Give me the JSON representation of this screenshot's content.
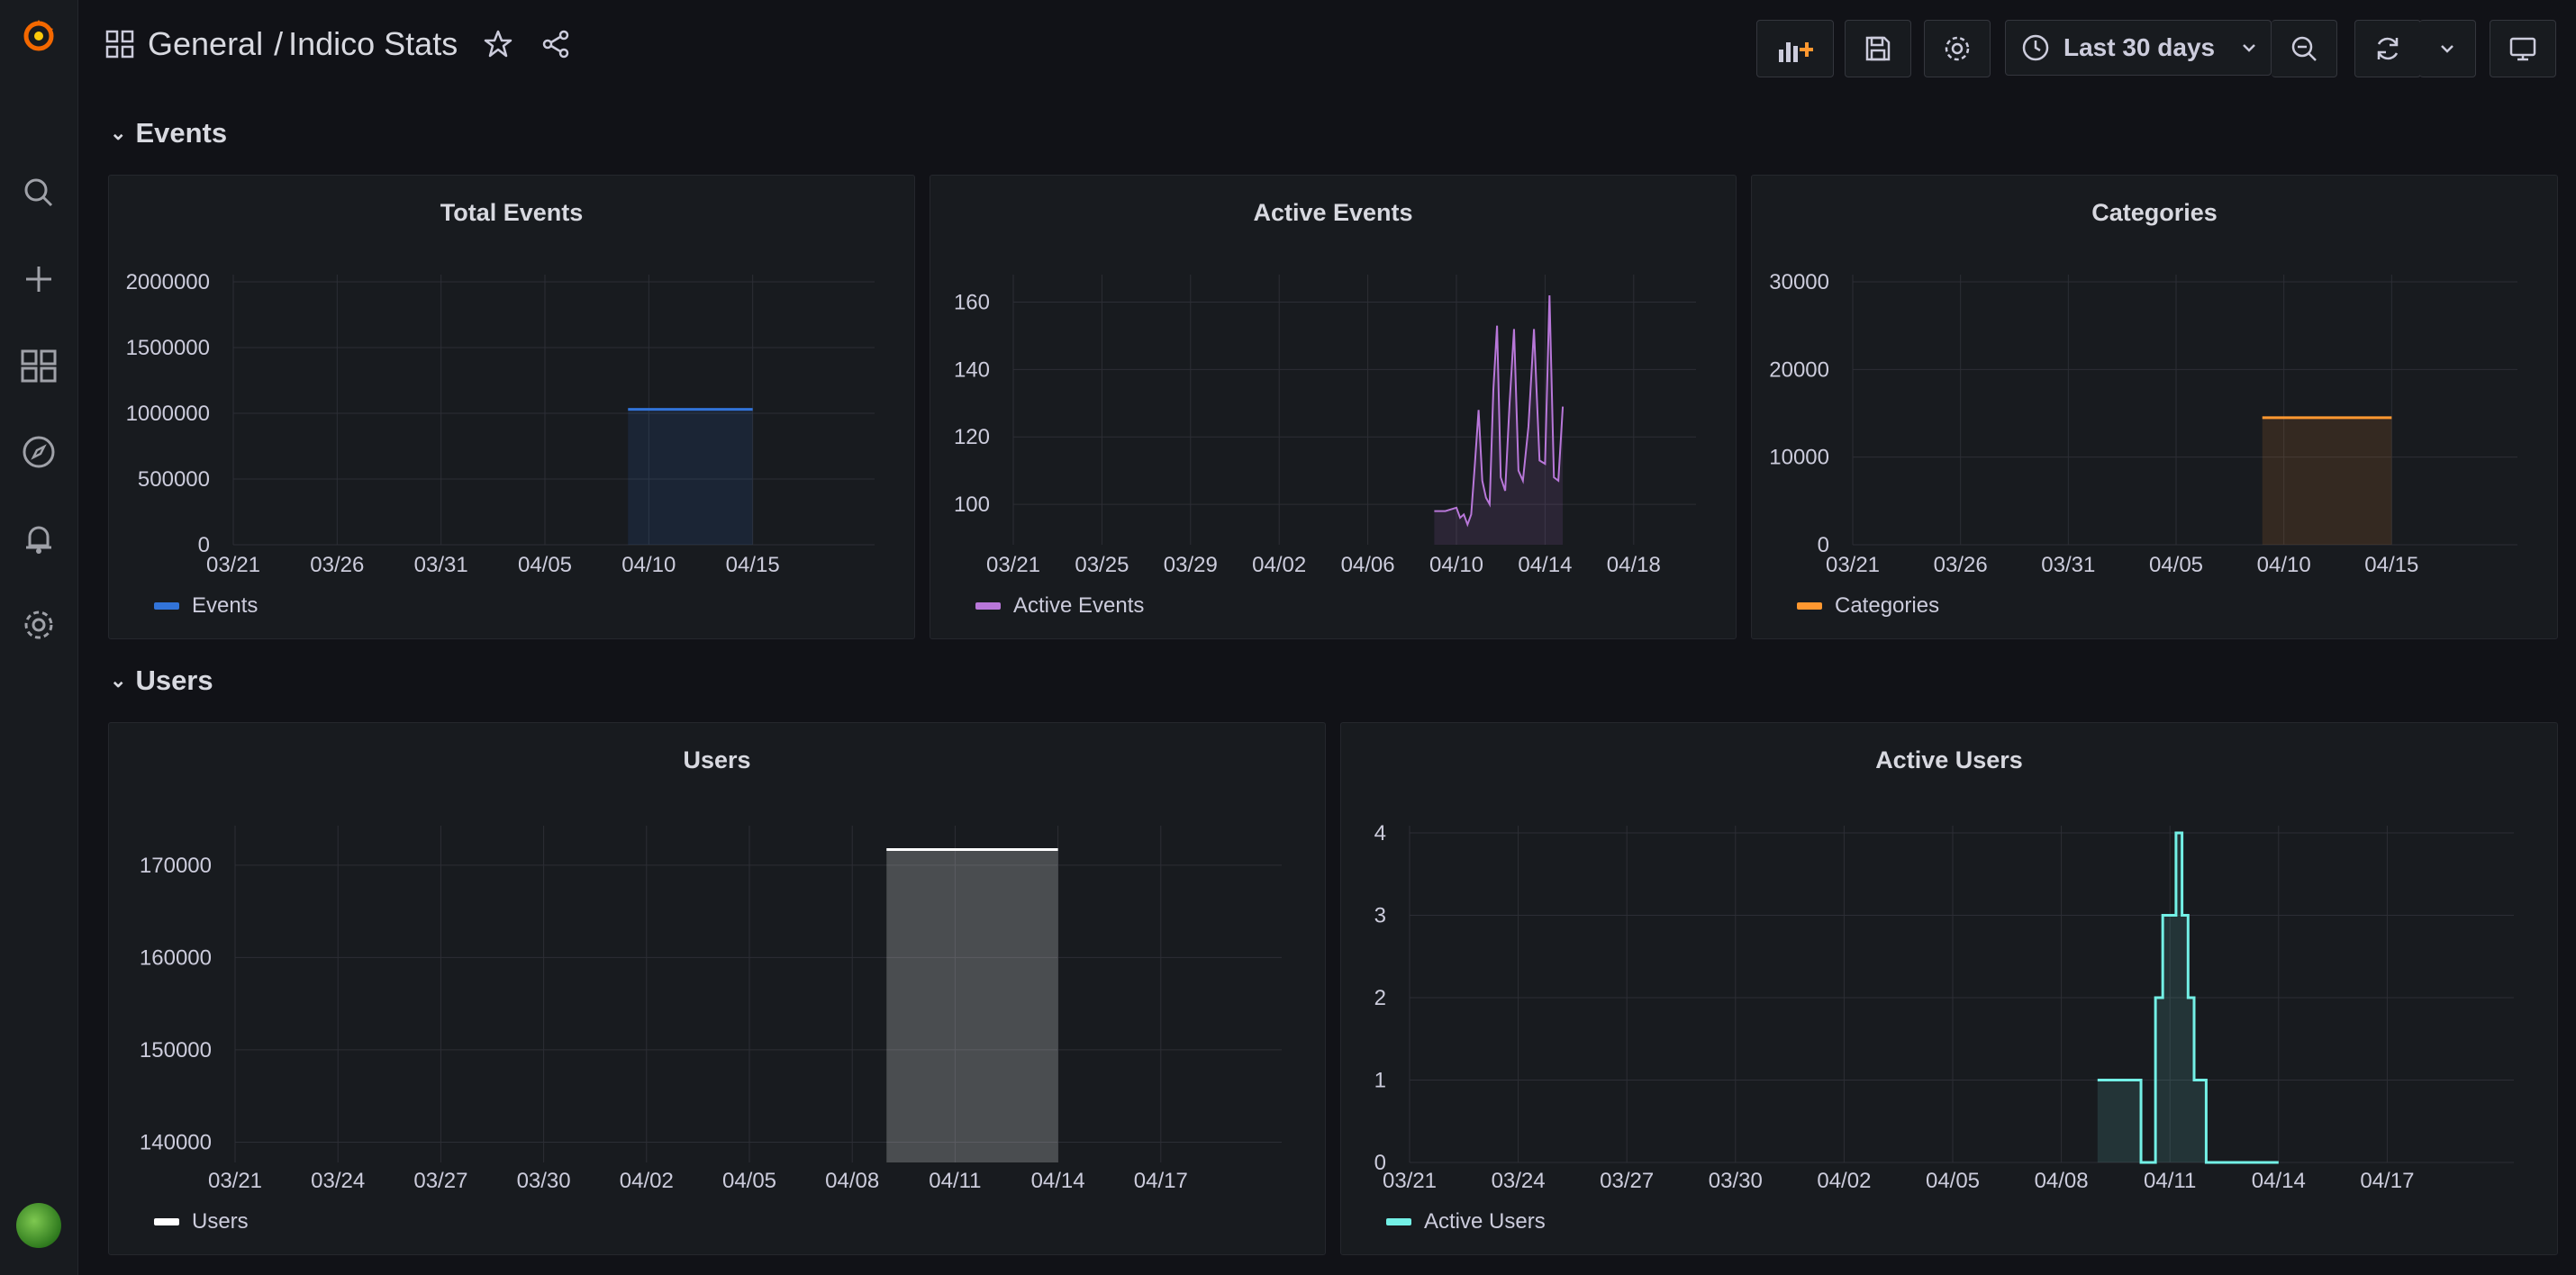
{
  "header": {
    "folder": "General",
    "separator": "/",
    "dashboard_title": "Indico Stats",
    "time_range": "Last 30 days"
  },
  "rows": [
    {
      "title": "Events"
    },
    {
      "title": "Users"
    }
  ],
  "colors": {
    "background": "#111217",
    "panel": "#181b1f",
    "events": "#3274d9",
    "active_events": "#b877d9",
    "categories": "#ff9830",
    "users": "#ffffff",
    "active_users": "#73f0e6"
  },
  "icons": [
    "grafana-logo-icon",
    "search-icon",
    "plus-icon",
    "dashboards-icon",
    "compass-icon",
    "bell-icon",
    "gear-icon",
    "add-panel-icon",
    "save-icon",
    "settings-icon",
    "clock-icon",
    "zoom-out-icon",
    "refresh-icon",
    "tv-icon"
  ],
  "chart_data": [
    {
      "id": "total-events",
      "type": "area",
      "title": "Total Events",
      "x_ticks": [
        "03/21",
        "03/26",
        "03/31",
        "04/05",
        "04/10",
        "04/15"
      ],
      "y_ticks": [
        "2000000",
        "1500000",
        "1000000",
        "500000",
        "0"
      ],
      "ylim": [
        0,
        2000000
      ],
      "series": [
        {
          "name": "Events",
          "x": [
            "04/09",
            "04/15"
          ],
          "values": [
            1030000,
            1030000
          ]
        }
      ],
      "legend": "bottom-left",
      "grid": true
    },
    {
      "id": "active-events",
      "type": "line",
      "title": "Active Events",
      "x_ticks": [
        "03/21",
        "03/25",
        "03/29",
        "04/02",
        "04/06",
        "04/10",
        "04/14",
        "04/18"
      ],
      "y_ticks": [
        "160",
        "140",
        "120",
        "100"
      ],
      "ylim": [
        88,
        166
      ],
      "series": [
        {
          "name": "Active Events",
          "x": [
            "04/09",
            "04/09",
            "04/10",
            "04/10",
            "04/10",
            "04/10",
            "04/10",
            "04/10",
            "04/11",
            "04/11",
            "04/11",
            "04/11",
            "04/11",
            "04/11",
            "04/12",
            "04/12",
            "04/12",
            "04/12",
            "04/12",
            "04/13",
            "04/13",
            "04/13",
            "04/13",
            "04/14",
            "04/14",
            "04/14",
            "04/14",
            "04/14"
          ],
          "values": [
            98,
            98,
            99,
            96,
            97,
            94,
            97,
            112,
            128,
            107,
            102,
            100,
            134,
            153,
            108,
            104,
            130,
            152,
            110,
            107,
            123,
            152,
            113,
            112,
            162,
            108,
            107,
            129
          ]
        }
      ],
      "legend": "bottom-left",
      "grid": true
    },
    {
      "id": "categories",
      "type": "area",
      "title": "Categories",
      "x_ticks": [
        "03/21",
        "03/26",
        "03/31",
        "04/05",
        "04/10",
        "04/15"
      ],
      "y_ticks": [
        "30000",
        "20000",
        "10000",
        "0"
      ],
      "ylim": [
        0,
        30000
      ],
      "series": [
        {
          "name": "Categories",
          "x": [
            "04/09",
            "04/15"
          ],
          "values": [
            14500,
            14500
          ]
        }
      ],
      "legend": "bottom-left",
      "grid": true
    },
    {
      "id": "users",
      "type": "area",
      "title": "Users",
      "x_ticks": [
        "03/21",
        "03/24",
        "03/27",
        "03/30",
        "04/02",
        "04/05",
        "04/08",
        "04/11",
        "04/14",
        "04/17"
      ],
      "y_ticks": [
        "170000",
        "160000",
        "150000",
        "140000"
      ],
      "ylim": [
        137800,
        173500
      ],
      "series": [
        {
          "name": "Users",
          "x": [
            "04/09",
            "04/14"
          ],
          "values": [
            171700,
            171700
          ]
        }
      ],
      "legend": "bottom-left",
      "grid": true
    },
    {
      "id": "active-users",
      "type": "area",
      "title": "Active Users",
      "x_ticks": [
        "03/21",
        "03/24",
        "03/27",
        "03/30",
        "04/02",
        "04/05",
        "04/08",
        "04/11",
        "04/14",
        "04/17"
      ],
      "y_ticks": [
        "4",
        "3",
        "2",
        "1",
        "0"
      ],
      "ylim": [
        0,
        4
      ],
      "series": [
        {
          "name": "Active Users",
          "x": [
            "04/09",
            "04/09",
            "04/10",
            "04/10",
            "04/10",
            "04/10",
            "04/10",
            "04/11",
            "04/11",
            "04/11",
            "04/11",
            "04/11",
            "04/11",
            "04/12",
            "04/12",
            "04/12",
            "04/14"
          ],
          "values": [
            1,
            1,
            1,
            0,
            0,
            2,
            3,
            3,
            4,
            3,
            2,
            1,
            1,
            0,
            0,
            0,
            0
          ]
        }
      ],
      "legend": "bottom-left",
      "grid": true
    }
  ]
}
